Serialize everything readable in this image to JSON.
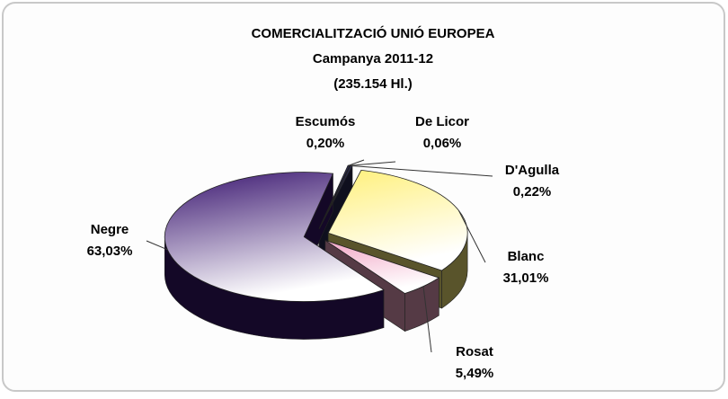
{
  "chart_data": {
    "type": "pie3d",
    "title": "COMERCIALITZACIÓ UNIÓ EUROPEA",
    "subtitle": [
      "Campanya 2011-12",
      "(235.154 Hl.)"
    ],
    "categories": [
      "Escumós",
      "De Licor",
      "D'Agulla",
      "Blanc",
      "Rosat",
      "Negre"
    ],
    "values": [
      0.2,
      0.06,
      0.22,
      31.01,
      5.49,
      63.03
    ],
    "value_labels": [
      "0,20%",
      "0,06%",
      "0,22%",
      "31,01%",
      "5,49%",
      "63,03%"
    ],
    "colors": [
      "#2b2b55",
      "#2b2b55",
      "#2b2b55",
      "#fff07a",
      "#f2a6c6",
      "#3a1670"
    ]
  }
}
